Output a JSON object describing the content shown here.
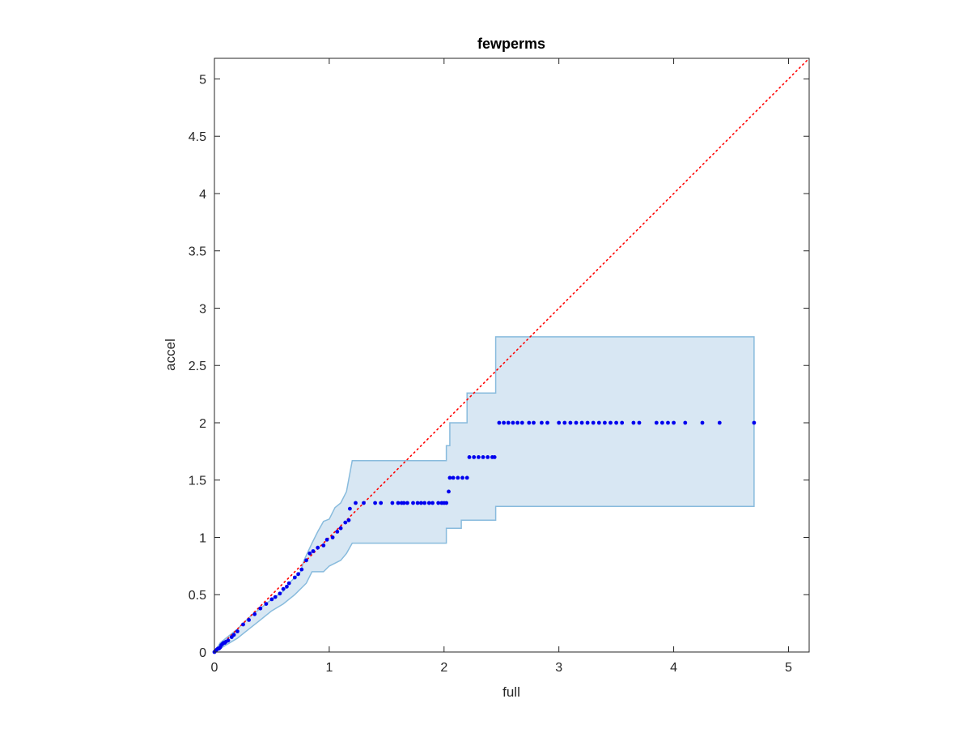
{
  "chart_data": {
    "type": "scatter",
    "title": "fewperms",
    "xlabel": "full",
    "ylabel": "accel",
    "xlim": [
      0,
      5.18
    ],
    "ylim": [
      0,
      5.18
    ],
    "xticks": [
      0,
      1,
      2,
      3,
      4,
      5
    ],
    "yticks": [
      0,
      0.5,
      1,
      1.5,
      2,
      2.5,
      3,
      3.5,
      4,
      4.5,
      5
    ],
    "xtick_labels": [
      "0",
      "1",
      "2",
      "3",
      "4",
      "5"
    ],
    "ytick_labels": [
      "0",
      "0.5",
      "1",
      "1.5",
      "2",
      "2.5",
      "3",
      "3.5",
      "4",
      "4.5",
      "5"
    ],
    "grid": false,
    "box": true,
    "colors": {
      "points": "#0000ee",
      "reference_line": "#ff0000",
      "band_fill": "#d8e7f3",
      "band_edge": "#88bbdd",
      "axes": "#262626"
    },
    "reference_line": {
      "style": "dotted",
      "x": [
        0,
        5.18
      ],
      "y": [
        0,
        5.18
      ]
    },
    "confidence_band": {
      "upper": [
        [
          0,
          0
        ],
        [
          0.05,
          0.08
        ],
        [
          0.1,
          0.12
        ],
        [
          0.2,
          0.2
        ],
        [
          0.3,
          0.3
        ],
        [
          0.4,
          0.38
        ],
        [
          0.5,
          0.46
        ],
        [
          0.6,
          0.53
        ],
        [
          0.65,
          0.6
        ],
        [
          0.7,
          0.65
        ],
        [
          0.75,
          0.7
        ],
        [
          0.78,
          0.8
        ],
        [
          0.85,
          0.95
        ],
        [
          0.9,
          1.05
        ],
        [
          0.95,
          1.14
        ],
        [
          1.0,
          1.16
        ],
        [
          1.05,
          1.26
        ],
        [
          1.1,
          1.3
        ],
        [
          1.15,
          1.4
        ],
        [
          1.2,
          1.67
        ],
        [
          2.02,
          1.67
        ],
        [
          2.02,
          1.8
        ],
        [
          2.05,
          1.8
        ],
        [
          2.05,
          2.0
        ],
        [
          2.2,
          2.0
        ],
        [
          2.2,
          2.26
        ],
        [
          2.45,
          2.26
        ],
        [
          2.45,
          2.75
        ],
        [
          4.7,
          2.75
        ]
      ],
      "lower": [
        [
          0,
          0
        ],
        [
          0.1,
          0.06
        ],
        [
          0.2,
          0.12
        ],
        [
          0.3,
          0.2
        ],
        [
          0.4,
          0.28
        ],
        [
          0.5,
          0.36
        ],
        [
          0.6,
          0.42
        ],
        [
          0.7,
          0.5
        ],
        [
          0.8,
          0.6
        ],
        [
          0.85,
          0.7
        ],
        [
          0.95,
          0.7
        ],
        [
          1.0,
          0.75
        ],
        [
          1.1,
          0.8
        ],
        [
          1.15,
          0.86
        ],
        [
          1.2,
          0.95
        ],
        [
          2.02,
          0.95
        ],
        [
          2.02,
          1.08
        ],
        [
          2.15,
          1.08
        ],
        [
          2.15,
          1.15
        ],
        [
          2.45,
          1.15
        ],
        [
          2.45,
          1.27
        ],
        [
          4.7,
          1.27
        ]
      ]
    },
    "points": [
      [
        0.0,
        0.0
      ],
      [
        0.01,
        0.01
      ],
      [
        0.02,
        0.02
      ],
      [
        0.03,
        0.03
      ],
      [
        0.04,
        0.03
      ],
      [
        0.05,
        0.04
      ],
      [
        0.06,
        0.06
      ],
      [
        0.07,
        0.07
      ],
      [
        0.08,
        0.08
      ],
      [
        0.09,
        0.08
      ],
      [
        0.1,
        0.09
      ],
      [
        0.12,
        0.1
      ],
      [
        0.15,
        0.13
      ],
      [
        0.17,
        0.15
      ],
      [
        0.2,
        0.18
      ],
      [
        0.25,
        0.24
      ],
      [
        0.3,
        0.28
      ],
      [
        0.35,
        0.33
      ],
      [
        0.4,
        0.38
      ],
      [
        0.45,
        0.42
      ],
      [
        0.5,
        0.46
      ],
      [
        0.53,
        0.48
      ],
      [
        0.57,
        0.51
      ],
      [
        0.6,
        0.55
      ],
      [
        0.63,
        0.57
      ],
      [
        0.65,
        0.6
      ],
      [
        0.7,
        0.65
      ],
      [
        0.73,
        0.68
      ],
      [
        0.76,
        0.72
      ],
      [
        0.8,
        0.8
      ],
      [
        0.83,
        0.86
      ],
      [
        0.86,
        0.88
      ],
      [
        0.9,
        0.91
      ],
      [
        0.95,
        0.93
      ],
      [
        0.98,
        0.98
      ],
      [
        1.03,
        1.0
      ],
      [
        1.07,
        1.05
      ],
      [
        1.1,
        1.08
      ],
      [
        1.14,
        1.13
      ],
      [
        1.17,
        1.15
      ],
      [
        1.18,
        1.25
      ],
      [
        1.23,
        1.3
      ],
      [
        1.3,
        1.3
      ],
      [
        1.4,
        1.3
      ],
      [
        1.45,
        1.3
      ],
      [
        1.55,
        1.3
      ],
      [
        1.6,
        1.3
      ],
      [
        1.63,
        1.3
      ],
      [
        1.65,
        1.3
      ],
      [
        1.68,
        1.3
      ],
      [
        1.73,
        1.3
      ],
      [
        1.77,
        1.3
      ],
      [
        1.8,
        1.3
      ],
      [
        1.83,
        1.3
      ],
      [
        1.87,
        1.3
      ],
      [
        1.9,
        1.3
      ],
      [
        1.95,
        1.3
      ],
      [
        1.98,
        1.3
      ],
      [
        2.0,
        1.3
      ],
      [
        2.02,
        1.3
      ],
      [
        2.04,
        1.4
      ],
      [
        2.05,
        1.52
      ],
      [
        2.08,
        1.52
      ],
      [
        2.12,
        1.52
      ],
      [
        2.16,
        1.52
      ],
      [
        2.2,
        1.52
      ],
      [
        2.22,
        1.7
      ],
      [
        2.26,
        1.7
      ],
      [
        2.3,
        1.7
      ],
      [
        2.34,
        1.7
      ],
      [
        2.38,
        1.7
      ],
      [
        2.42,
        1.7
      ],
      [
        2.44,
        1.7
      ],
      [
        2.48,
        2.0
      ],
      [
        2.52,
        2.0
      ],
      [
        2.56,
        2.0
      ],
      [
        2.6,
        2.0
      ],
      [
        2.64,
        2.0
      ],
      [
        2.68,
        2.0
      ],
      [
        2.74,
        2.0
      ],
      [
        2.78,
        2.0
      ],
      [
        2.85,
        2.0
      ],
      [
        2.9,
        2.0
      ],
      [
        3.0,
        2.0
      ],
      [
        3.05,
        2.0
      ],
      [
        3.1,
        2.0
      ],
      [
        3.15,
        2.0
      ],
      [
        3.2,
        2.0
      ],
      [
        3.25,
        2.0
      ],
      [
        3.3,
        2.0
      ],
      [
        3.35,
        2.0
      ],
      [
        3.4,
        2.0
      ],
      [
        3.45,
        2.0
      ],
      [
        3.5,
        2.0
      ],
      [
        3.55,
        2.0
      ],
      [
        3.65,
        2.0
      ],
      [
        3.7,
        2.0
      ],
      [
        3.85,
        2.0
      ],
      [
        3.9,
        2.0
      ],
      [
        3.95,
        2.0
      ],
      [
        4.0,
        2.0
      ],
      [
        4.1,
        2.0
      ],
      [
        4.25,
        2.0
      ],
      [
        4.4,
        2.0
      ],
      [
        4.7,
        2.0
      ]
    ]
  }
}
